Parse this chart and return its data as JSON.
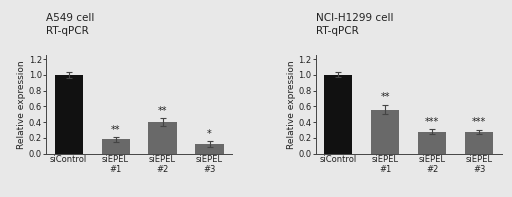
{
  "left": {
    "title_line1": "A549 cell",
    "title_line2": "RT-qPCR",
    "categories": [
      "siControl",
      "siEPEL\n#1",
      "siEPEL\n#2",
      "siEPEL\n#3"
    ],
    "values": [
      1.0,
      0.18,
      0.4,
      0.12
    ],
    "errors": [
      0.04,
      0.03,
      0.05,
      0.04
    ],
    "bar_colors": [
      "#111111",
      "#696969",
      "#696969",
      "#696969"
    ],
    "significance": [
      "",
      "**",
      "**",
      "*"
    ],
    "ylabel": "Relative expression",
    "ylim": [
      0,
      1.25
    ],
    "yticks": [
      0.0,
      0.2,
      0.4,
      0.6,
      0.8,
      1.0,
      1.2
    ]
  },
  "right": {
    "title_line1": "NCI-H1299 cell",
    "title_line2": "RT-qPCR",
    "categories": [
      "siControl",
      "siEPEL\n#1",
      "siEPEL\n#2",
      "siEPEL\n#3"
    ],
    "values": [
      1.0,
      0.56,
      0.28,
      0.28
    ],
    "errors": [
      0.03,
      0.06,
      0.03,
      0.025
    ],
    "bar_colors": [
      "#111111",
      "#696969",
      "#696969",
      "#696969"
    ],
    "significance": [
      "",
      "**",
      "***",
      "***"
    ],
    "ylabel": "Relative expression",
    "ylim": [
      0,
      1.25
    ],
    "yticks": [
      0,
      0.2,
      0.4,
      0.6,
      0.8,
      1.0,
      1.2
    ]
  },
  "background_color": "#e8e8e8",
  "title_fontsize": 7.5,
  "axis_fontsize": 6.5,
  "tick_fontsize": 6,
  "sig_fontsize": 7,
  "bar_width": 0.6
}
